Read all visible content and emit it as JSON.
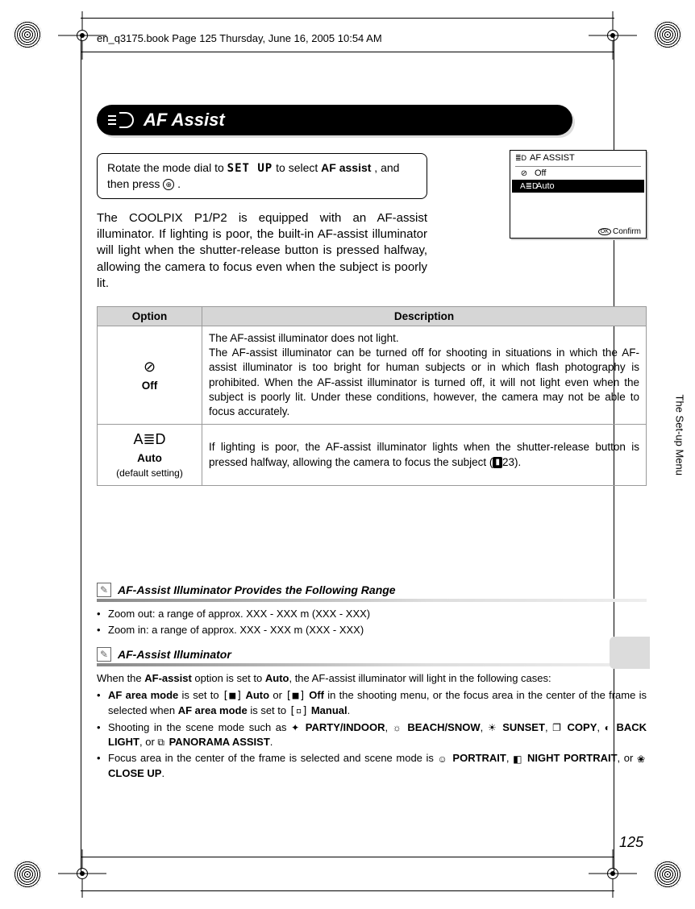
{
  "frameHeader": "en_q3175.book  Page 125  Thursday, June 16, 2005  10:54 AM",
  "headerTitle": "AF Assist",
  "instruction": {
    "pre": "Rotate the mode dial to ",
    "setup": "SET UP",
    "mid": " to select ",
    "bold": "AF assist",
    "post": ", and then press ",
    "buttonGlyph": "⊕",
    "end": "."
  },
  "lcd": {
    "title": "AF ASSIST",
    "rows": [
      {
        "icon": "⊘",
        "label": "Off",
        "selected": false
      },
      {
        "icon": "A≣D",
        "label": "Auto",
        "selected": true
      }
    ],
    "confirmIcon": "OK",
    "confirmLabel": "Confirm"
  },
  "bodyText": "The COOLPIX P1/P2 is equipped with an AF-assist illuminator. If lighting is poor, the built-in AF-assist illuminator will light when the shutter-release button is pressed halfway, allowing the camera to focus even when the subject is poorly lit.",
  "table": {
    "headers": [
      "Option",
      "Description"
    ],
    "rows": [
      {
        "icon": "⊘",
        "label": "Off",
        "sub": "",
        "desc": "The AF-assist illuminator does not light.\nThe AF-assist illuminator can be turned off for shooting in situations in which the AF-assist illuminator is too bright for human subjects or in which flash photography is prohibited. When the AF-assist illuminator is turned off, it will not light even when the subject is poorly lit. Under these conditions, however, the camera may not be able to focus accurately."
      },
      {
        "icon": "A≣D",
        "label": "Auto",
        "sub": "(default setting)",
        "desc": "If lighting is poor, the AF-assist illuminator lights when the shutter-release button is pressed halfway, allowing the camera to focus the subject (",
        "pageRef": "23",
        "descEnd": ")."
      }
    ]
  },
  "note1": {
    "title": "AF-Assist Illuminator Provides the Following Range",
    "lines": [
      "Zoom out:  a range of approx. XXX - XXX m (XXX - XXX)",
      "Zoom in:     a range of approx. XXX - XXX m (XXX - XXX)"
    ]
  },
  "note2": {
    "title": "AF-Assist Illuminator",
    "intro": "When the ",
    "intro_b1": "AF-assist",
    "intro_mid": " option is set to ",
    "intro_b2": "Auto",
    "intro_end": ", the AF-assist illuminator will light in the following cases:",
    "bullets": [
      {
        "parts": [
          {
            "b": "AF area mode"
          },
          {
            "t": " is set to "
          },
          {
            "br": "[■]"
          },
          {
            "b": " Auto"
          },
          {
            "t": " or "
          },
          {
            "br": "[■]"
          },
          {
            "b": " Off"
          },
          {
            "t": " in the shooting menu, or the focus area in the center of the frame is selected when "
          },
          {
            "b": "AF area mode"
          },
          {
            "t": " is set to "
          },
          {
            "br": "[▫]"
          },
          {
            "b": " Manual"
          },
          {
            "t": "."
          }
        ]
      },
      {
        "parts": [
          {
            "t": "Shooting in the scene mode such as "
          },
          {
            "ic": "✦"
          },
          {
            "b": " PARTY/INDOOR"
          },
          {
            "t": ", "
          },
          {
            "ic": "☼"
          },
          {
            "b": " BEACH/SNOW"
          },
          {
            "t": ", "
          },
          {
            "ic": "☀"
          },
          {
            "b": " SUNSET"
          },
          {
            "t": ", "
          },
          {
            "ic": "❐"
          },
          {
            "b": " COPY"
          },
          {
            "t": ", "
          },
          {
            "ic": "◐"
          },
          {
            "b": " BACK LIGHT"
          },
          {
            "t": ", or "
          },
          {
            "ic": "⧉"
          },
          {
            "b": " PANORAMA ASSIST"
          },
          {
            "t": "."
          }
        ]
      },
      {
        "parts": [
          {
            "t": "Focus area in the center of the frame is selected and scene mode is "
          },
          {
            "ic": "☺"
          },
          {
            "b": " PORTRAIT"
          },
          {
            "t": ", "
          },
          {
            "ic": "◧"
          },
          {
            "b": " NIGHT PORTRAIT"
          },
          {
            "t": ", or "
          },
          {
            "ic": "❀"
          },
          {
            "b": " CLOSE UP"
          },
          {
            "t": "."
          }
        ]
      }
    ]
  },
  "sideTab": "The Set-up Menu",
  "pageNumber": "125"
}
